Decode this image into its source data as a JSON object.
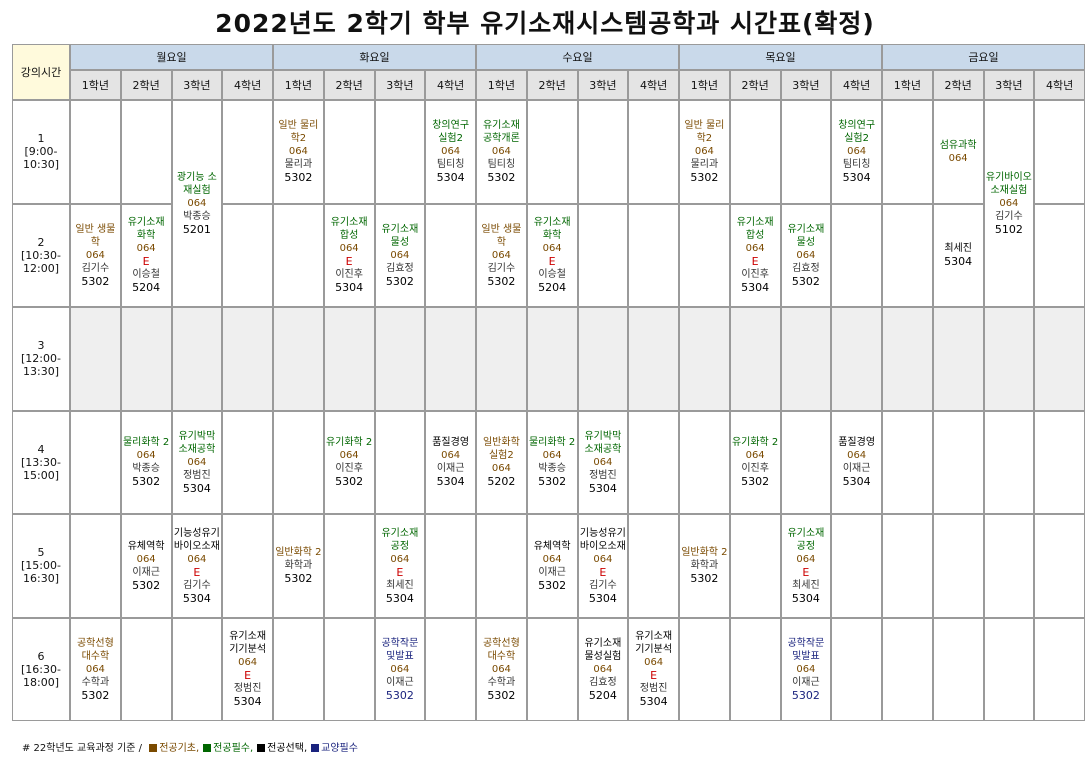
{
  "title": "2022년도 2학기 학부 유기소재시스템공학과 시간표(확정)",
  "corner_label": "강의시간",
  "colors": {
    "basic": "#7a4a00",
    "required": "#006600",
    "elective": "#000000",
    "liberal": "#1a237e",
    "e_mark": "#cc0000"
  },
  "days": [
    {
      "name": "월요일"
    },
    {
      "name": "화요일"
    },
    {
      "name": "수요일"
    },
    {
      "name": "목요일"
    },
    {
      "name": "금요일"
    }
  ],
  "years": [
    "1학년",
    "2학년",
    "3학년",
    "4학년"
  ],
  "periods": [
    {
      "num": "1",
      "time": "[9:00-10:30]"
    },
    {
      "num": "2",
      "time": "[10:30-12:00]"
    },
    {
      "num": "3",
      "time": "[12:00-13:30]"
    },
    {
      "num": "4",
      "time": "[13:30-15:00]"
    },
    {
      "num": "5",
      "time": "[15:00-16:30]"
    },
    {
      "num": "6",
      "time": "[16:30-18:00]"
    }
  ],
  "courses": [
    {
      "day": 0,
      "year": 0,
      "period": 1,
      "span": 1,
      "name": "일반 생물학",
      "cat": "basic",
      "code": "064",
      "e": "",
      "prof": "김기수",
      "room": "5302"
    },
    {
      "day": 0,
      "year": 1,
      "period": 1,
      "span": 1,
      "name": "유기소재 화학",
      "cat": "required",
      "code": "064",
      "e": "E",
      "prof": "이승철",
      "room": "5204"
    },
    {
      "day": 0,
      "year": 2,
      "period": 0,
      "span": 2,
      "name": "광기능 소재실험",
      "cat": "required",
      "code": "064",
      "e": "",
      "prof": "박종승",
      "room": "5201"
    },
    {
      "day": 0,
      "year": 1,
      "period": 3,
      "span": 1,
      "name": "물리화학 2",
      "cat": "required",
      "code": "064",
      "e": "",
      "prof": "박종승",
      "room": "5302"
    },
    {
      "day": 0,
      "year": 2,
      "period": 3,
      "span": 1,
      "name": "유기박막 소재공학",
      "cat": "required",
      "code": "064",
      "e": "",
      "prof": "정범진",
      "room": "5304"
    },
    {
      "day": 0,
      "year": 1,
      "period": 4,
      "span": 1,
      "name": "유체역학",
      "cat": "elective",
      "code": "064",
      "e": "",
      "prof": "이재근",
      "room": "5302"
    },
    {
      "day": 0,
      "year": 2,
      "period": 4,
      "span": 1,
      "name": "기능성유기 바이오소재",
      "cat": "elective",
      "code": "064",
      "e": "E",
      "prof": "김기수",
      "room": "5304"
    },
    {
      "day": 0,
      "year": 0,
      "period": 5,
      "span": 1,
      "name": "공학선형 대수학",
      "cat": "basic",
      "code": "064",
      "e": "",
      "prof": "수학과",
      "room": "5302"
    },
    {
      "day": 0,
      "year": 3,
      "period": 5,
      "span": 1,
      "name": "유기소재 기기분석",
      "cat": "elective",
      "code": "064",
      "e": "E",
      "prof": "정범진",
      "room": "5304"
    },
    {
      "day": 1,
      "year": 0,
      "period": 0,
      "span": 1,
      "name": "일반 물리학2",
      "cat": "basic",
      "code": "064",
      "e": "",
      "prof": "물리과",
      "room": "5302"
    },
    {
      "day": 1,
      "year": 1,
      "period": 1,
      "span": 1,
      "name": "유기소재 합성",
      "cat": "required",
      "code": "064",
      "e": "E",
      "prof": "이진후",
      "room": "5304"
    },
    {
      "day": 1,
      "year": 2,
      "period": 1,
      "span": 1,
      "name": "유기소재 물성",
      "cat": "required",
      "code": "064",
      "e": "",
      "prof": "김효정",
      "room": "5302"
    },
    {
      "day": 1,
      "year": 1,
      "period": 3,
      "span": 1,
      "name": "유기화학 2",
      "cat": "required",
      "code": "064",
      "e": "",
      "prof": "이진후",
      "room": "5302"
    },
    {
      "day": 1,
      "year": 3,
      "period": 3,
      "span": 1,
      "name": "품질경영",
      "cat": "elective",
      "code": "064",
      "e": "",
      "prof": "이재근",
      "room": "5304"
    },
    {
      "day": 1,
      "year": 0,
      "period": 4,
      "span": 1,
      "name": "일반화학 2",
      "cat": "basic",
      "code": "",
      "e": "",
      "prof": "화학과",
      "room": "5302"
    },
    {
      "day": 1,
      "year": 2,
      "period": 4,
      "span": 1,
      "name": "유기소재 공정",
      "cat": "required",
      "code": "064",
      "e": "E",
      "prof": "최세진",
      "room": "5304"
    },
    {
      "day": 1,
      "year": 2,
      "period": 5,
      "span": 1,
      "name": "공학작문 및발표",
      "cat": "liberal",
      "code": "064",
      "e": "",
      "prof": "이재근",
      "room": "5302"
    },
    {
      "day": 1,
      "year": 3,
      "period": 0,
      "span": 1,
      "name": "창의연구 실험2",
      "cat": "required",
      "code": "064",
      "e": "",
      "prof": "팀티칭",
      "room": "5304"
    },
    {
      "day": 2,
      "year": 0,
      "period": 0,
      "span": 1,
      "name": "유기소재 공학개론",
      "cat": "required",
      "code": "064",
      "e": "",
      "prof": "팀티칭",
      "room": "5302"
    },
    {
      "day": 2,
      "year": 0,
      "period": 1,
      "span": 1,
      "name": "일반 생물학",
      "cat": "basic",
      "code": "064",
      "e": "",
      "prof": "김기수",
      "room": "5302"
    },
    {
      "day": 2,
      "year": 1,
      "period": 1,
      "span": 1,
      "name": "유기소재 화학",
      "cat": "required",
      "code": "064",
      "e": "E",
      "prof": "이승철",
      "room": "5204"
    },
    {
      "day": 2,
      "year": 0,
      "period": 3,
      "span": 1,
      "name": "일반화학 실험2",
      "cat": "basic",
      "code": "064",
      "e": "",
      "prof": "",
      "room": "5202"
    },
    {
      "day": 2,
      "year": 1,
      "period": 3,
      "span": 1,
      "name": "물리화학 2",
      "cat": "required",
      "code": "064",
      "e": "",
      "prof": "박종승",
      "room": "5302"
    },
    {
      "day": 2,
      "year": 2,
      "period": 3,
      "span": 1,
      "name": "유기박막 소재공학",
      "cat": "required",
      "code": "064",
      "e": "",
      "prof": "정범진",
      "room": "5304"
    },
    {
      "day": 2,
      "year": 1,
      "period": 4,
      "span": 1,
      "name": "유체역학",
      "cat": "elective",
      "code": "064",
      "e": "",
      "prof": "이재근",
      "room": "5302"
    },
    {
      "day": 2,
      "year": 2,
      "period": 4,
      "span": 1,
      "name": "기능성유기 바이오소재",
      "cat": "elective",
      "code": "064",
      "e": "E",
      "prof": "김기수",
      "room": "5304"
    },
    {
      "day": 2,
      "year": 0,
      "period": 5,
      "span": 1,
      "name": "공학선형 대수학",
      "cat": "basic",
      "code": "064",
      "e": "",
      "prof": "수학과",
      "room": "5302"
    },
    {
      "day": 2,
      "year": 2,
      "period": 5,
      "span": 1,
      "name": "유기소재 물성실험",
      "cat": "elective",
      "code": "064",
      "e": "",
      "prof": "김효정",
      "room": "5204"
    },
    {
      "day": 2,
      "year": 3,
      "period": 5,
      "span": 1,
      "name": "유기소재 기기분석",
      "cat": "elective",
      "code": "064",
      "e": "E",
      "prof": "정범진",
      "room": "5304"
    },
    {
      "day": 3,
      "year": 0,
      "period": 0,
      "span": 1,
      "name": "일반 물리학2",
      "cat": "basic",
      "code": "064",
      "e": "",
      "prof": "물리과",
      "room": "5302"
    },
    {
      "day": 3,
      "year": 1,
      "period": 1,
      "span": 1,
      "name": "유기소재 합성",
      "cat": "required",
      "code": "064",
      "e": "E",
      "prof": "이진후",
      "room": "5304"
    },
    {
      "day": 3,
      "year": 2,
      "period": 1,
      "span": 1,
      "name": "유기소재 물성",
      "cat": "required",
      "code": "064",
      "e": "",
      "prof": "김효정",
      "room": "5302"
    },
    {
      "day": 3,
      "year": 3,
      "period": 0,
      "span": 1,
      "name": "창의연구 실험2",
      "cat": "required",
      "code": "064",
      "e": "",
      "prof": "팀티칭",
      "room": "5304"
    },
    {
      "day": 3,
      "year": 1,
      "period": 3,
      "span": 1,
      "name": "유기화학 2",
      "cat": "required",
      "code": "064",
      "e": "",
      "prof": "이진후",
      "room": "5302"
    },
    {
      "day": 3,
      "year": 3,
      "period": 3,
      "span": 1,
      "name": "품질경영",
      "cat": "elective",
      "code": "064",
      "e": "",
      "prof": "이재근",
      "room": "5304"
    },
    {
      "day": 3,
      "year": 0,
      "period": 4,
      "span": 1,
      "name": "일반화학 2",
      "cat": "basic",
      "code": "",
      "e": "",
      "prof": "화학과",
      "room": "5302"
    },
    {
      "day": 3,
      "year": 2,
      "period": 4,
      "span": 1,
      "name": "유기소재 공정",
      "cat": "required",
      "code": "064",
      "e": "E",
      "prof": "최세진",
      "room": "5304"
    },
    {
      "day": 3,
      "year": 2,
      "period": 5,
      "span": 1,
      "name": "공학작문 및발표",
      "cat": "liberal",
      "code": "064",
      "e": "",
      "prof": "이재근",
      "room": "5302"
    },
    {
      "day": 4,
      "year": 1,
      "period": 0,
      "span": 1,
      "name": "섬유과학",
      "cat": "required",
      "code": "064",
      "e": "",
      "prof": "",
      "room": ""
    },
    {
      "day": 4,
      "year": 1,
      "period": 1,
      "span": 1,
      "name": "최세진",
      "cat": "elective",
      "code": "",
      "e": "",
      "prof": "",
      "room": "5304"
    },
    {
      "day": 4,
      "year": 2,
      "period": 0,
      "span": 2,
      "name": "유기바이오 소재실험",
      "cat": "required",
      "code": "064",
      "e": "",
      "prof": "김기수",
      "room": "5102"
    }
  ],
  "legend": {
    "prefix": "# 22학년도 교육과정 기준 /",
    "items": [
      {
        "label": "전공기초,",
        "color": "#7a4a00"
      },
      {
        "label": "전공필수,",
        "color": "#006600"
      },
      {
        "label": "전공선택,",
        "color": "#000000"
      },
      {
        "label": "교양필수",
        "color": "#1a237e"
      }
    ]
  }
}
